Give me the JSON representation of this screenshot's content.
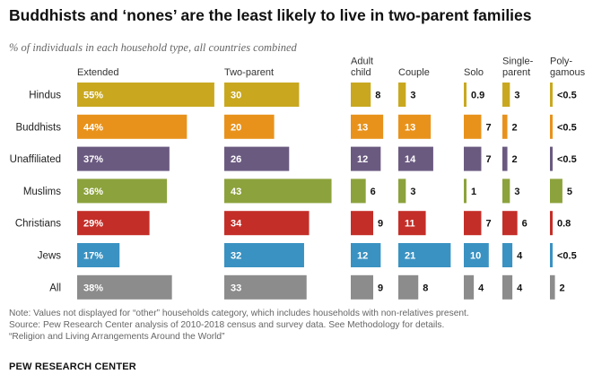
{
  "title": "Buddhists and ‘nones’ are the least likely to live in two-parent families",
  "subtitle": "% of individuals in each household type, all countries combined",
  "notes": {
    "note": "Note: Values not displayed for “other” households category, which includes households with non-relatives present.",
    "source": "Source: Pew Research Center analysis of 2010-2018 census and survey data. See Methodology for details.",
    "report": "“Religion and Living Arrangements Around the World”"
  },
  "credit": "PEW RESEARCH CENTER",
  "colors": {
    "Hindus": "#C9A820",
    "Buddhists": "#E8921C",
    "Unaffiliated": "#6B5A80",
    "Muslims": "#8CA23C",
    "Christians": "#C42E28",
    "Jews": "#3A92C2",
    "All": "#8C8C8C"
  },
  "chart_data": {
    "type": "bar",
    "categories": [
      "Hindus",
      "Buddhists",
      "Unaffiliated",
      "Muslims",
      "Christians",
      "Jews",
      "All"
    ],
    "series": [
      {
        "name": "Extended",
        "header": [
          "Extended"
        ],
        "labels": [
          "55%",
          "44%",
          "37%",
          "36%",
          "29%",
          "17%",
          "38%"
        ],
        "values": [
          55,
          44,
          37,
          36,
          29,
          17,
          38
        ]
      },
      {
        "name": "Two-parent",
        "header": [
          "Two-parent"
        ],
        "labels": [
          "30",
          "20",
          "26",
          "43",
          "34",
          "32",
          "33"
        ],
        "values": [
          30,
          20,
          26,
          43,
          34,
          32,
          33
        ]
      },
      {
        "name": "Adult child",
        "header": [
          "Adult",
          "child"
        ],
        "labels": [
          "8",
          "13",
          "12",
          "6",
          "9",
          "12",
          "9"
        ],
        "values": [
          8,
          13,
          12,
          6,
          9,
          12,
          9
        ]
      },
      {
        "name": "Couple",
        "header": [
          "Couple"
        ],
        "labels": [
          "3",
          "13",
          "14",
          "3",
          "11",
          "21",
          "8"
        ],
        "values": [
          3,
          13,
          14,
          3,
          11,
          21,
          8
        ]
      },
      {
        "name": "Solo",
        "header": [
          "Solo"
        ],
        "labels": [
          "0.9",
          "7",
          "7",
          "1",
          "7",
          "10",
          "4"
        ],
        "values": [
          0.9,
          7,
          7,
          1,
          7,
          10,
          4
        ]
      },
      {
        "name": "Single-parent",
        "header": [
          "Single-",
          "parent"
        ],
        "labels": [
          "3",
          "2",
          "2",
          "3",
          "6",
          "4",
          "4"
        ],
        "values": [
          3,
          2,
          2,
          3,
          6,
          4,
          4
        ]
      },
      {
        "name": "Polygamous",
        "header": [
          "Poly-",
          "gamous"
        ],
        "labels": [
          "<0.5",
          "<0.5",
          "<0.5",
          "5",
          "0.8",
          "<0.5",
          "2"
        ],
        "values": [
          0.3,
          0.3,
          0.3,
          5,
          0.8,
          0.3,
          2
        ]
      }
    ]
  }
}
